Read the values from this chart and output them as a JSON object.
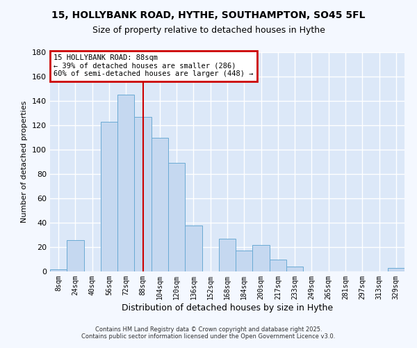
{
  "title": "15, HOLLYBANK ROAD, HYTHE, SOUTHAMPTON, SO45 5FL",
  "subtitle": "Size of property relative to detached houses in Hythe",
  "xlabel": "Distribution of detached houses by size in Hythe",
  "ylabel": "Number of detached properties",
  "bar_color": "#c5d8f0",
  "bar_edge_color": "#6aaad4",
  "background_color": "#dce8f8",
  "fig_background_color": "#f4f8ff",
  "grid_color": "#c8d8ee",
  "bin_labels": [
    "8sqm",
    "24sqm",
    "40sqm",
    "56sqm",
    "72sqm",
    "88sqm",
    "104sqm",
    "120sqm",
    "136sqm",
    "152sqm",
    "168sqm",
    "184sqm",
    "200sqm",
    "217sqm",
    "233sqm",
    "249sqm",
    "265sqm",
    "281sqm",
    "297sqm",
    "313sqm",
    "329sqm"
  ],
  "bar_heights": [
    2,
    26,
    0,
    123,
    145,
    127,
    110,
    89,
    38,
    0,
    27,
    17,
    22,
    10,
    4,
    0,
    0,
    0,
    0,
    0,
    3
  ],
  "vline_x": 5,
  "vline_color": "#cc0000",
  "annotation_title": "15 HOLLYBANK ROAD: 88sqm",
  "annotation_line2": "← 39% of detached houses are smaller (286)",
  "annotation_line3": "60% of semi-detached houses are larger (448) →",
  "annotation_box_color": "#cc0000",
  "ylim": [
    0,
    180
  ],
  "yticks": [
    0,
    20,
    40,
    60,
    80,
    100,
    120,
    140,
    160,
    180
  ],
  "footer1": "Contains HM Land Registry data © Crown copyright and database right 2025.",
  "footer2": "Contains public sector information licensed under the Open Government Licence v3.0."
}
